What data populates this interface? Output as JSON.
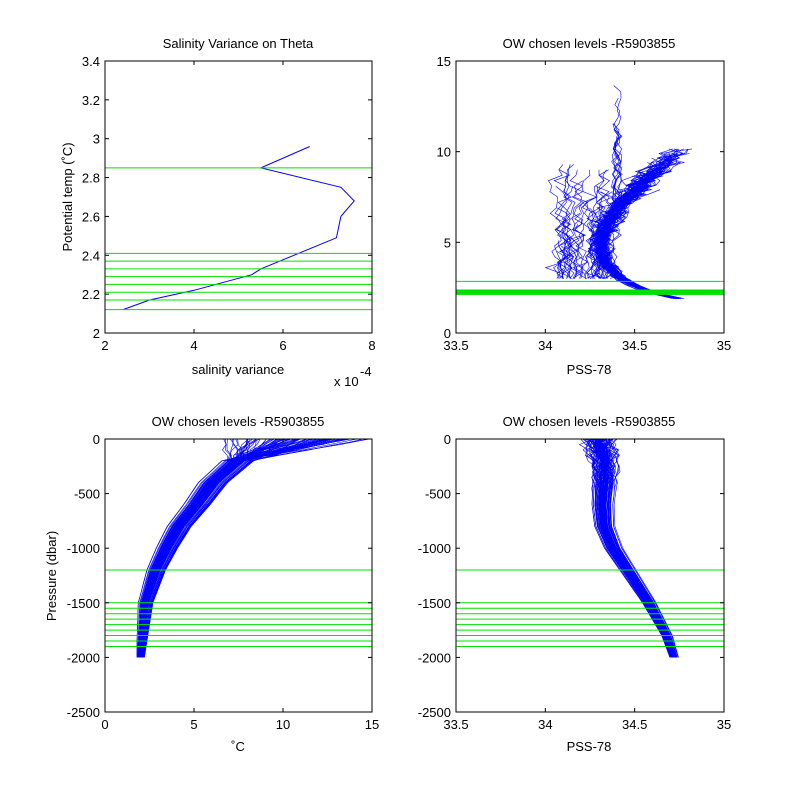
{
  "chart_data": [
    {
      "type": "line",
      "title": "Salinity Variance on Theta",
      "xlabel": "salinity variance",
      "ylabel": "Potential temp (˚C)",
      "x_exponent_label": "x 10",
      "x_exponent_power": "-4",
      "xlim": [
        2,
        8
      ],
      "ylim": [
        2,
        3.4
      ],
      "xticks": [
        "2",
        "4",
        "6",
        "8"
      ],
      "yticks": [
        "2",
        "2.2",
        "2.4",
        "2.6",
        "2.8",
        "3",
        "3.2",
        "3.4"
      ],
      "series": [
        {
          "x": [
            2.4,
            3.0,
            4.0,
            5.3,
            5.5,
            7.2,
            7.3,
            7.6,
            7.3,
            5.5,
            6.6
          ],
          "y": [
            2.12,
            2.17,
            2.22,
            2.3,
            2.33,
            2.49,
            2.6,
            2.68,
            2.75,
            2.85,
            2.96
          ],
          "color": "#0000ff"
        }
      ],
      "levels": [
        2.12,
        2.17,
        2.21,
        2.25,
        2.29,
        2.33,
        2.37,
        2.41,
        2.85
      ],
      "level_color": "#00e000"
    },
    {
      "type": "line",
      "title": "OW chosen levels -R5903855",
      "xlabel": "PSS-78",
      "ylabel": "",
      "xlim": [
        33.5,
        35
      ],
      "ylim": [
        0,
        15
      ],
      "xticks": [
        "33.5",
        "34",
        "34.5",
        "35"
      ],
      "yticks": [
        "0",
        "5",
        "10",
        "15"
      ],
      "series_color": "#0000ff",
      "level_band": [
        2.1,
        2.4
      ],
      "levels": [
        2.85
      ],
      "level_color": "#00e000"
    },
    {
      "type": "line",
      "title": "OW chosen levels -R5903855",
      "xlabel": "˚C",
      "ylabel": "Pressure (dbar)",
      "xlim": [
        0,
        15
      ],
      "ylim": [
        -2500,
        0
      ],
      "xticks": [
        "0",
        "5",
        "10",
        "15"
      ],
      "yticks": [
        "-2500",
        "-2000",
        "-1500",
        "-1000",
        "-500",
        "0"
      ],
      "series_color": "#0000ff",
      "levels": [
        -1200,
        -1500,
        -1550,
        -1600,
        -1650,
        -1700,
        -1750,
        -1800,
        -1850,
        -1900
      ],
      "level_color": "#00e000"
    },
    {
      "type": "line",
      "title": "OW chosen levels -R5903855",
      "xlabel": "PSS-78",
      "ylabel": "",
      "xlim": [
        33.5,
        35
      ],
      "ylim": [
        -2500,
        0
      ],
      "xticks": [
        "33.5",
        "34",
        "34.5",
        "35"
      ],
      "yticks": [
        "-2500",
        "-2000",
        "-1500",
        "-1000",
        "-500",
        "0"
      ],
      "series_color": "#0000ff",
      "levels": [
        -1200,
        -1500,
        -1550,
        -1600,
        -1650,
        -1700,
        -1750,
        -1800,
        -1850,
        -1900
      ],
      "level_color": "#00e000"
    }
  ]
}
